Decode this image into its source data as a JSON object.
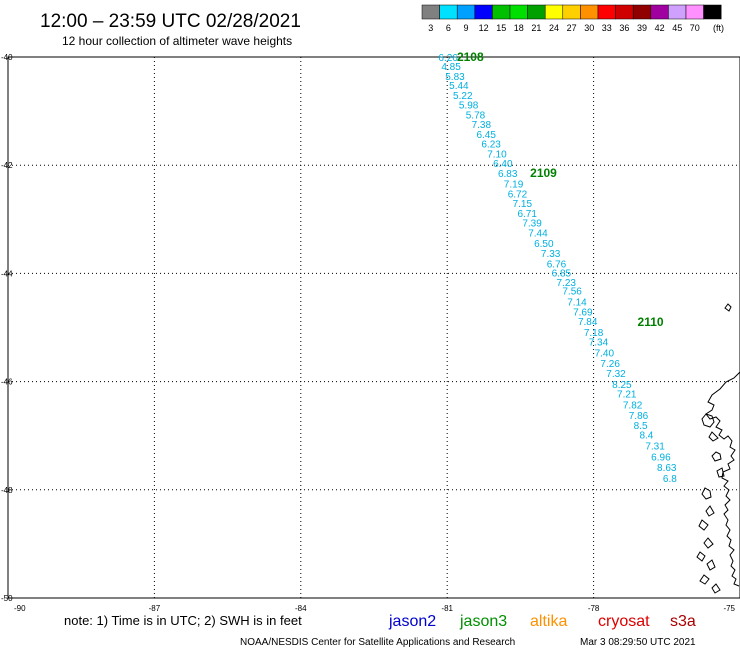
{
  "header": {
    "title": "12:00 – 23:59 UTC 02/28/2021",
    "subtitle": "12 hour collection of altimeter wave heights"
  },
  "colorbar": {
    "unit": "(ft)",
    "swatches": [
      {
        "label": "3",
        "color": "#808080"
      },
      {
        "label": "6",
        "color": "#00e0ff"
      },
      {
        "label": "9",
        "color": "#00a0ff"
      },
      {
        "label": "12",
        "color": "#0000ff"
      },
      {
        "label": "15",
        "color": "#00c000"
      },
      {
        "label": "18",
        "color": "#00e000"
      },
      {
        "label": "21",
        "color": "#00a000"
      },
      {
        "label": "24",
        "color": "#ffff00"
      },
      {
        "label": "27",
        "color": "#ffd000"
      },
      {
        "label": "30",
        "color": "#ff9000"
      },
      {
        "label": "33",
        "color": "#ff0000"
      },
      {
        "label": "36",
        "color": "#d00000"
      },
      {
        "label": "39",
        "color": "#900000"
      },
      {
        "label": "42",
        "color": "#a000a0"
      },
      {
        "label": "45",
        "color": "#d0a0ff"
      },
      {
        "label": "70",
        "color": "#ff90ff"
      },
      {
        "label": "",
        "color": "#000000"
      }
    ]
  },
  "footer": {
    "note": "note:  1) Time is in UTC;  2) SWH is in feet",
    "credit": "NOAA/NESDIS Center for Satellite Applications and Research",
    "timestamp": "Mar  3 08:29:50 UTC 2021",
    "satellites": [
      {
        "name": "jason2",
        "color": "#0000cc"
      },
      {
        "name": "jason3",
        "color": "#009000"
      },
      {
        "name": "altika",
        "color": "#ff9000"
      },
      {
        "name": "cryosat",
        "color": "#dd0000"
      },
      {
        "name": "s3a",
        "color": "#aa0000"
      }
    ]
  },
  "chart_data": {
    "type": "scatter",
    "xlim": [
      -90,
      -75
    ],
    "ylim": [
      -50,
      -40
    ],
    "x_ticks": [
      -90,
      -87,
      -84,
      -81,
      -78,
      -75
    ],
    "y_ticks": [
      -40,
      -42,
      -44,
      -46,
      -48,
      -50
    ],
    "grid": true,
    "point_color": "#00b0e0",
    "time_label_color": "#008000",
    "series": [
      {
        "points": [
          {
            "x": -81.18,
            "y": -40.0,
            "label": "6.26"
          },
          {
            "x": -81.12,
            "y": -40.17,
            "label": "4.85"
          },
          {
            "x": -81.04,
            "y": -40.35,
            "label": "5.83"
          },
          {
            "x": -80.96,
            "y": -40.52,
            "label": "5.44"
          },
          {
            "x": -80.88,
            "y": -40.7,
            "label": "5.22"
          },
          {
            "x": -80.76,
            "y": -40.88,
            "label": "5.98"
          },
          {
            "x": -80.62,
            "y": -41.06,
            "label": "5.78"
          },
          {
            "x": -80.5,
            "y": -41.24,
            "label": "7.38"
          },
          {
            "x": -80.4,
            "y": -41.42,
            "label": "6.45"
          },
          {
            "x": -80.3,
            "y": -41.6,
            "label": "6.23"
          },
          {
            "x": -80.18,
            "y": -41.78,
            "label": "7.10"
          },
          {
            "x": -80.06,
            "y": -41.96,
            "label": "6.40"
          },
          {
            "x": -79.96,
            "y": -42.14,
            "label": "6.83"
          },
          {
            "x": -79.84,
            "y": -42.34,
            "label": "7.19"
          },
          {
            "x": -79.76,
            "y": -42.52,
            "label": "6.72"
          },
          {
            "x": -79.66,
            "y": -42.7,
            "label": "7.15"
          },
          {
            "x": -79.56,
            "y": -42.88,
            "label": "6.71"
          },
          {
            "x": -79.46,
            "y": -43.06,
            "label": "7.39"
          },
          {
            "x": -79.34,
            "y": -43.24,
            "label": "7.44"
          },
          {
            "x": -79.22,
            "y": -43.44,
            "label": "6.50"
          },
          {
            "x": -79.08,
            "y": -43.62,
            "label": "7.33"
          },
          {
            "x": -78.96,
            "y": -43.82,
            "label": "6.76"
          },
          {
            "x": -78.86,
            "y": -43.98,
            "label": "6.85"
          },
          {
            "x": -78.76,
            "y": -44.16,
            "label": "7.23"
          },
          {
            "x": -78.64,
            "y": -44.32,
            "label": "7.56"
          },
          {
            "x": -78.54,
            "y": -44.52,
            "label": "7.14"
          },
          {
            "x": -78.42,
            "y": -44.7,
            "label": "7.69"
          },
          {
            "x": -78.32,
            "y": -44.88,
            "label": "7.84"
          },
          {
            "x": -78.2,
            "y": -45.08,
            "label": "7.18"
          },
          {
            "x": -78.1,
            "y": -45.26,
            "label": "7.34"
          },
          {
            "x": -77.98,
            "y": -45.46,
            "label": "7.40"
          },
          {
            "x": -77.86,
            "y": -45.66,
            "label": "7.26"
          },
          {
            "x": -77.74,
            "y": -45.84,
            "label": "7.32"
          },
          {
            "x": -77.62,
            "y": -46.04,
            "label": "8.25"
          },
          {
            "x": -77.52,
            "y": -46.22,
            "label": "7.21"
          },
          {
            "x": -77.4,
            "y": -46.42,
            "label": "7.82"
          },
          {
            "x": -77.28,
            "y": -46.62,
            "label": "7.86"
          },
          {
            "x": -77.18,
            "y": -46.8,
            "label": "8.5"
          },
          {
            "x": -77.06,
            "y": -46.98,
            "label": "8.4"
          },
          {
            "x": -76.94,
            "y": -47.18,
            "label": "7.31"
          },
          {
            "x": -76.82,
            "y": -47.38,
            "label": "6.96"
          },
          {
            "x": -76.7,
            "y": -47.58,
            "label": "8.63"
          },
          {
            "x": -76.58,
            "y": -47.78,
            "label": "6.8"
          }
        ]
      }
    ],
    "time_labels": [
      {
        "x": -80.8,
        "y": -40.0,
        "label": "2108"
      },
      {
        "x": -79.3,
        "y": -42.14,
        "label": "2109"
      },
      {
        "x": -77.1,
        "y": -44.9,
        "label": "2110"
      }
    ]
  }
}
